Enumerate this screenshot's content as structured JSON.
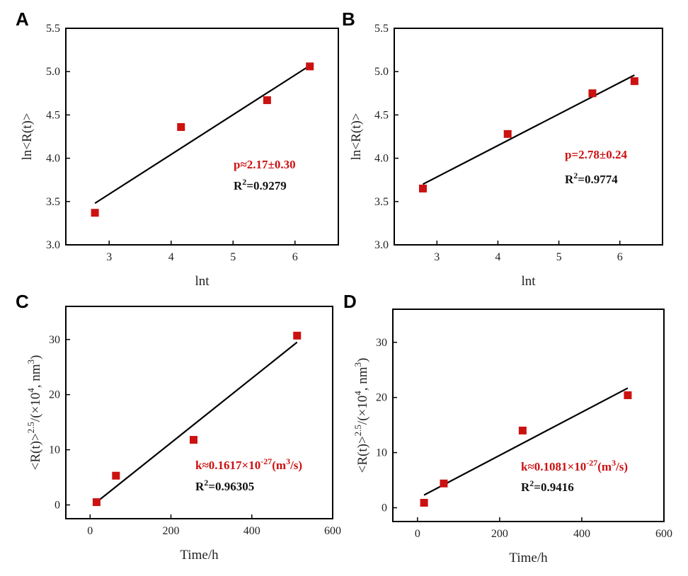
{
  "colors": {
    "marker": "#cc1111",
    "line": "#000000",
    "annotation_red": "#cc1111",
    "annotation_black": "#111111"
  },
  "chart_data": [
    {
      "panel": "A",
      "type": "scatter",
      "xlabel": "lnt",
      "ylabel": "ln<R(t)>",
      "xlim": [
        2.3,
        6.7
      ],
      "ylim": [
        3.0,
        5.5
      ],
      "xticks": [
        3,
        4,
        5,
        6
      ],
      "yticks": [
        3.0,
        3.5,
        4.0,
        4.5,
        5.0,
        5.5
      ],
      "ytick_labels": [
        "3.0",
        "3.5",
        "4.0",
        "4.5",
        "5.0",
        "5.5"
      ],
      "x": [
        2.77,
        4.16,
        5.55,
        6.24
      ],
      "y": [
        3.37,
        4.36,
        4.67,
        5.06
      ],
      "fit": {
        "x": [
          2.77,
          6.24
        ],
        "y": [
          3.48,
          5.07
        ]
      },
      "annotation_red": "p≈2.17±0.30",
      "r2_label": "R",
      "r2_sup": "2",
      "r2_value": "=0.9279"
    },
    {
      "panel": "B",
      "type": "scatter",
      "xlabel": "lnt",
      "ylabel": "ln<R(t)>",
      "xlim": [
        2.3,
        6.7
      ],
      "ylim": [
        3.0,
        5.5
      ],
      "xticks": [
        3,
        4,
        5,
        6
      ],
      "yticks": [
        3.0,
        3.5,
        4.0,
        4.5,
        5.0,
        5.5
      ],
      "ytick_labels": [
        "3.0",
        "3.5",
        "4.0",
        "4.5",
        "5.0",
        "5.5"
      ],
      "x": [
        2.77,
        4.16,
        5.55,
        6.24
      ],
      "y": [
        3.65,
        4.28,
        4.75,
        4.89
      ],
      "fit": {
        "x": [
          2.77,
          6.24
        ],
        "y": [
          3.7,
          4.96
        ]
      },
      "annotation_red": "p=2.78±0.24",
      "r2_label": "R",
      "r2_sup": "2",
      "r2_value": "=0.9774"
    },
    {
      "panel": "C",
      "type": "scatter",
      "xlabel": "Time/h",
      "ylabel_main": "<R(t)>",
      "ylabel_sup": "2.5",
      "ylabel_mid": "/(×10",
      "ylabel_sup2": "4",
      "ylabel_tail": ", nm",
      "ylabel_sup3": "3",
      "ylabel_end": ")",
      "xlim": [
        -60,
        600
      ],
      "ylim": [
        -2.5,
        36
      ],
      "xticks": [
        0,
        200,
        400,
        600
      ],
      "yticks": [
        0,
        10,
        20,
        30
      ],
      "x": [
        16,
        64,
        256,
        512
      ],
      "y": [
        0.5,
        5.3,
        11.8,
        30.7
      ],
      "fit": {
        "x": [
          16,
          512
        ],
        "y": [
          0.5,
          29.5
        ]
      },
      "annotation_prefix": "k≈0.1617×10",
      "annotation_sup": "-27",
      "annotation_mid": "(m",
      "annotation_sup2": "3",
      "annotation_end": "/s)",
      "r2_label": "R",
      "r2_sup": "2",
      "r2_value": "=0.96305"
    },
    {
      "panel": "D",
      "type": "scatter",
      "xlabel": "Time/h",
      "ylabel_main": "<R(t)>",
      "ylabel_sup": "2.5",
      "ylabel_mid": "/(×10",
      "ylabel_sup2": "4",
      "ylabel_tail": ", nm",
      "ylabel_sup3": "3",
      "ylabel_end": ")",
      "xlim": [
        -60,
        600
      ],
      "ylim": [
        -2.5,
        36
      ],
      "xticks": [
        0,
        200,
        400,
        600
      ],
      "yticks": [
        0,
        10,
        20,
        30
      ],
      "x": [
        16,
        64,
        256,
        512
      ],
      "y": [
        0.9,
        4.4,
        14.0,
        20.4
      ],
      "fit": {
        "x": [
          16,
          512
        ],
        "y": [
          2.3,
          21.7
        ]
      },
      "annotation_prefix": "k≈0.1081×10",
      "annotation_sup": "-27",
      "annotation_mid": "(m",
      "annotation_sup2": "3",
      "annotation_end": "/s)",
      "r2_label": "R",
      "r2_sup": "2",
      "r2_value": "=0.9416"
    }
  ]
}
